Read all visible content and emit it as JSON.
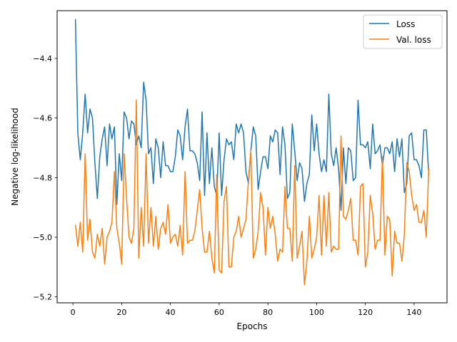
{
  "chart_data": {
    "type": "line",
    "title": "",
    "xlabel": "Epochs",
    "ylabel": "Negative log-likelihood",
    "xlim": [
      -6.5,
      153.5
    ],
    "ylim": [
      -5.22,
      -4.24
    ],
    "xticks": [
      0,
      20,
      40,
      60,
      80,
      100,
      120,
      140
    ],
    "xtick_labels": [
      "0",
      "20",
      "40",
      "60",
      "80",
      "100",
      "120",
      "140"
    ],
    "yticks": [
      -5.2,
      -5.0,
      -4.8,
      -4.6,
      -4.4
    ],
    "ytick_labels": [
      "−5.2",
      "−5.0",
      "−4.8",
      "−4.6",
      "−4.4"
    ],
    "grid": false,
    "legend_position": "top-right",
    "x": [
      1,
      2,
      3,
      4,
      5,
      6,
      7,
      8,
      9,
      10,
      11,
      12,
      13,
      14,
      15,
      16,
      17,
      18,
      19,
      20,
      21,
      22,
      23,
      24,
      25,
      26,
      27,
      28,
      29,
      30,
      31,
      32,
      33,
      34,
      35,
      36,
      37,
      38,
      39,
      40,
      41,
      42,
      43,
      44,
      45,
      46,
      47,
      48,
      49,
      50,
      51,
      52,
      53,
      54,
      55,
      56,
      57,
      58,
      59,
      60,
      61,
      62,
      63,
      64,
      65,
      66,
      67,
      68,
      69,
      70,
      71,
      72,
      73,
      74,
      75,
      76,
      77,
      78,
      79,
      80,
      81,
      82,
      83,
      84,
      85,
      86,
      87,
      88,
      89,
      90,
      91,
      92,
      93,
      94,
      95,
      96,
      97,
      98,
      99,
      100,
      101,
      102,
      103,
      104,
      105,
      106,
      107,
      108,
      109,
      110,
      111,
      112,
      113,
      114,
      115,
      116,
      117,
      118,
      119,
      120,
      121,
      122,
      123,
      124,
      125,
      126,
      127,
      128,
      129,
      130,
      131,
      132,
      133,
      134,
      135,
      136,
      137,
      138,
      139,
      140,
      141,
      142,
      143,
      144,
      145,
      146
    ],
    "series": [
      {
        "name": "Loss",
        "color": "#1f77b4",
        "values": [
          -4.27,
          -4.65,
          -4.74,
          -4.65,
          -4.52,
          -4.65,
          -4.57,
          -4.6,
          -4.75,
          -4.87,
          -4.73,
          -4.67,
          -4.63,
          -4.76,
          -4.62,
          -4.67,
          -4.63,
          -4.89,
          -4.72,
          -4.81,
          -4.58,
          -4.6,
          -4.67,
          -4.61,
          -4.62,
          -4.69,
          -4.66,
          -4.7,
          -4.48,
          -4.54,
          -4.72,
          -4.7,
          -4.82,
          -4.67,
          -4.7,
          -4.8,
          -4.68,
          -4.76,
          -4.76,
          -4.78,
          -4.78,
          -4.73,
          -4.64,
          -4.66,
          -4.74,
          -4.63,
          -4.57,
          -4.71,
          -4.71,
          -4.72,
          -4.75,
          -4.81,
          -4.58,
          -4.86,
          -4.65,
          -4.82,
          -4.7,
          -4.83,
          -4.86,
          -4.65,
          -4.86,
          -4.74,
          -4.67,
          -4.69,
          -4.68,
          -4.74,
          -4.62,
          -4.65,
          -4.62,
          -4.65,
          -4.78,
          -4.82,
          -4.71,
          -4.63,
          -4.66,
          -4.84,
          -4.78,
          -4.73,
          -4.73,
          -4.77,
          -4.66,
          -4.68,
          -4.64,
          -4.65,
          -4.79,
          -4.63,
          -4.69,
          -4.87,
          -4.85,
          -4.62,
          -4.71,
          -4.81,
          -4.75,
          -4.77,
          -4.88,
          -4.82,
          -4.79,
          -4.59,
          -4.71,
          -4.62,
          -4.72,
          -4.78,
          -4.74,
          -4.78,
          -4.52,
          -4.72,
          -4.76,
          -4.7,
          -4.77,
          -4.91,
          -4.7,
          -4.82,
          -4.7,
          -4.71,
          -4.81,
          -4.8,
          -4.54,
          -4.69,
          -4.69,
          -4.7,
          -4.68,
          -4.77,
          -4.62,
          -4.72,
          -4.71,
          -4.69,
          -4.76,
          -4.7,
          -4.7,
          -4.72,
          -4.68,
          -4.78,
          -4.67,
          -4.73,
          -4.67,
          -4.85,
          -4.82,
          -4.66,
          -4.65,
          -4.74,
          -4.74,
          -4.76,
          -4.8,
          -4.64,
          -4.64,
          -4.79
        ]
      },
      {
        "name": "Val. loss",
        "color": "#ff7f0e",
        "values": [
          -4.96,
          -5.03,
          -4.95,
          -5.05,
          -4.72,
          -5.01,
          -4.94,
          -5.05,
          -5.07,
          -4.99,
          -5.03,
          -4.97,
          -5.09,
          -5.0,
          -4.98,
          -4.95,
          -4.78,
          -4.97,
          -5.02,
          -5.09,
          -4.72,
          -4.87,
          -5.0,
          -5.02,
          -4.97,
          -4.54,
          -5.07,
          -4.9,
          -5.03,
          -4.72,
          -5.02,
          -4.9,
          -5.03,
          -4.93,
          -5.04,
          -4.97,
          -4.95,
          -4.99,
          -4.89,
          -5.02,
          -5.0,
          -4.99,
          -5.03,
          -4.96,
          -5.06,
          -4.78,
          -5.02,
          -5.01,
          -5.01,
          -4.98,
          -4.91,
          -4.84,
          -4.97,
          -5.05,
          -5.05,
          -4.98,
          -5.07,
          -5.12,
          -4.79,
          -5.11,
          -5.12,
          -4.88,
          -4.83,
          -5.1,
          -5.1,
          -5.0,
          -4.98,
          -4.93,
          -5.0,
          -4.97,
          -4.94,
          -4.81,
          -4.71,
          -5.07,
          -5.04,
          -4.98,
          -4.85,
          -4.9,
          -5.06,
          -4.9,
          -4.97,
          -4.93,
          -4.99,
          -5.08,
          -5.04,
          -5.05,
          -4.83,
          -4.97,
          -4.97,
          -5.08,
          -4.76,
          -5.07,
          -5.03,
          -4.98,
          -5.16,
          -5.08,
          -4.93,
          -5.07,
          -5.04,
          -5.0,
          -4.86,
          -5.06,
          -4.86,
          -5.03,
          -4.85,
          -5.05,
          -5.03,
          -5.04,
          -5.04,
          -4.66,
          -4.93,
          -4.94,
          -4.91,
          -4.87,
          -5.01,
          -5.01,
          -5.06,
          -4.83,
          -4.82,
          -5.1,
          -5.05,
          -4.86,
          -4.92,
          -5.04,
          -5.01,
          -5.01,
          -4.73,
          -5.06,
          -4.93,
          -4.94,
          -5.13,
          -4.98,
          -5.02,
          -5.02,
          -5.08,
          -4.99,
          -4.75,
          -4.78,
          -4.86,
          -4.91,
          -4.89,
          -4.95,
          -4.95,
          -4.91,
          -5.0,
          -4.77
        ]
      }
    ]
  }
}
